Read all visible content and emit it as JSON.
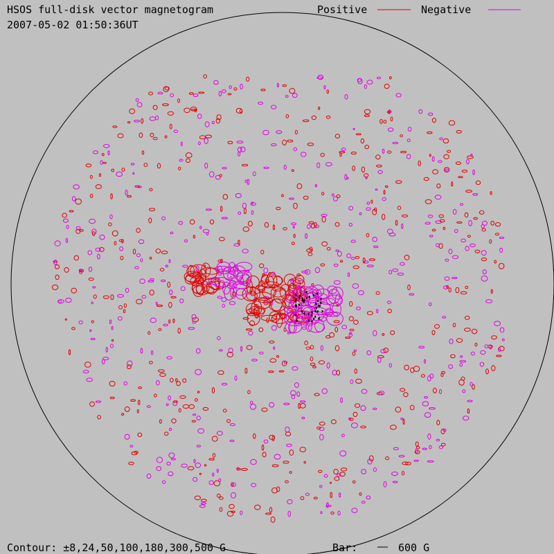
{
  "header": {
    "title": "HSOS full-disk vector magnetogram",
    "timestamp": "2007-05-02 01:50:36UT"
  },
  "legend": {
    "positive": {
      "label": "Positive",
      "color": "#e00000"
    },
    "negative": {
      "label": "Negative",
      "color": "#e000e0"
    }
  },
  "footer": {
    "contour": "Contour: ±8,24,50,100,180,300,500 G",
    "bar_label": "Bar:",
    "bar_value": "600 G"
  }
}
